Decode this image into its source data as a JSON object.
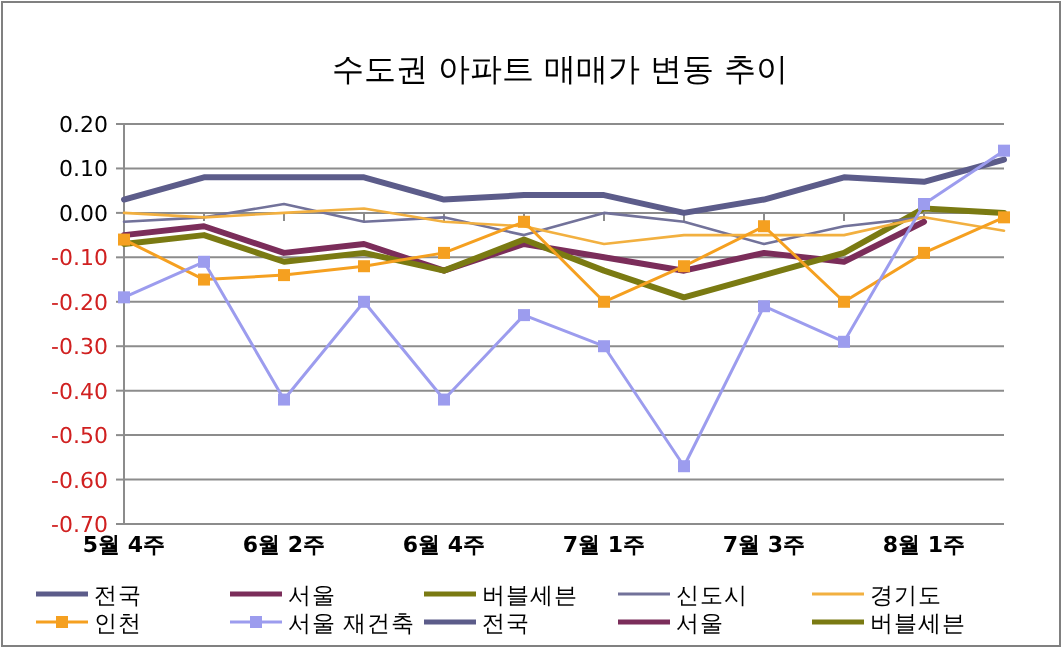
{
  "chart_data": {
    "type": "line",
    "title": "수도권 아파트 매매가 변동 추이",
    "categories": [
      "5월 4주",
      null,
      "6월 2주",
      null,
      "6월 4주",
      null,
      "7월 1주",
      null,
      "7월 3주",
      null,
      "8월 1주",
      null
    ],
    "ylim": [
      -0.7,
      0.2
    ],
    "yticks": [
      {
        "value": 0.2,
        "label": "0.20"
      },
      {
        "value": 0.1,
        "label": "0.10"
      },
      {
        "value": 0,
        "label": "0.00"
      },
      {
        "value": -0.1,
        "label": "-0.10"
      },
      {
        "value": -0.2,
        "label": "-0.20"
      },
      {
        "value": -0.3,
        "label": "-0.30"
      },
      {
        "value": -0.4,
        "label": "-0.40"
      },
      {
        "value": -0.5,
        "label": "-0.50"
      },
      {
        "value": -0.6,
        "label": "-0.60"
      },
      {
        "value": -0.7,
        "label": "-0.70"
      }
    ],
    "grid": "y",
    "legend": "bottom",
    "series": [
      {
        "name": "전국",
        "color": "#5c5c8a",
        "marker": "none",
        "values": [
          0.03,
          0.08,
          0.08,
          0.08,
          0.03,
          0.04,
          0.04,
          0.0,
          0.03,
          0.08,
          0.07,
          0.12
        ]
      },
      {
        "name": "서울",
        "color": "#7b2d5a",
        "marker": "none",
        "values": [
          -0.05,
          -0.03,
          -0.09,
          -0.07,
          -0.13,
          -0.07,
          -0.1,
          -0.13,
          -0.09,
          -0.11,
          -0.02,
          null
        ]
      },
      {
        "name": "버블세븐",
        "color": "#7a7a12",
        "marker": "none",
        "values": [
          -0.07,
          -0.05,
          -0.11,
          -0.09,
          -0.13,
          -0.06,
          -0.13,
          -0.19,
          -0.14,
          -0.09,
          0.01,
          0.0
        ]
      },
      {
        "name": "신도시",
        "color": "#72729a",
        "marker": "none",
        "values": [
          -0.02,
          -0.01,
          0.02,
          -0.02,
          -0.01,
          -0.05,
          0.0,
          -0.02,
          -0.07,
          -0.03,
          -0.01,
          null
        ]
      },
      {
        "name": "경기도",
        "color": "#f2b040",
        "marker": "none",
        "values": [
          0.0,
          -0.01,
          0.0,
          0.01,
          -0.02,
          -0.03,
          -0.07,
          -0.05,
          -0.05,
          -0.05,
          -0.01,
          -0.04
        ]
      },
      {
        "name": "인천",
        "color": "#f5a020",
        "marker": "square",
        "values": [
          -0.06,
          -0.15,
          -0.14,
          -0.12,
          -0.09,
          -0.02,
          -0.2,
          -0.12,
          -0.03,
          -0.2,
          -0.09,
          -0.01
        ]
      },
      {
        "name": "서울 재건축",
        "color": "#9c9cee",
        "marker": "square",
        "values": [
          -0.19,
          -0.11,
          -0.42,
          -0.2,
          -0.42,
          -0.23,
          -0.3,
          -0.57,
          -0.21,
          -0.29,
          0.02,
          0.14
        ]
      },
      {
        "name": "전국",
        "color": "#5c5c8a",
        "marker": "none",
        "values": [
          null,
          null,
          null,
          null,
          null,
          null,
          null,
          null,
          null,
          null,
          null,
          null
        ]
      },
      {
        "name": "서울",
        "color": "#7b2d5a",
        "marker": "none",
        "values": [
          null,
          null,
          null,
          null,
          null,
          null,
          null,
          null,
          null,
          null,
          null,
          null
        ]
      },
      {
        "name": "버블세븐",
        "color": "#7a7a12",
        "marker": "none",
        "values": [
          null,
          null,
          null,
          null,
          null,
          null,
          null,
          null,
          null,
          null,
          null,
          null
        ]
      }
    ]
  }
}
